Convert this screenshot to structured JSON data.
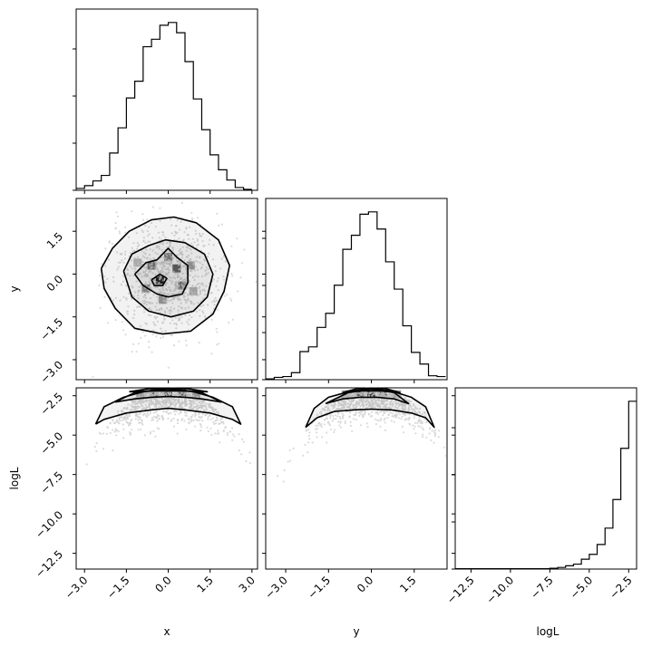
{
  "chart_data": [
    {
      "panel": "hist-x",
      "type": "histogram",
      "param": "x",
      "bins": [
        -3.3,
        -3.0,
        -2.7,
        -2.4,
        -2.1,
        -1.8,
        -1.5,
        -1.2,
        -0.9,
        -0.6,
        -0.3,
        0.0,
        0.3,
        0.6,
        0.9,
        1.2,
        1.5,
        1.8,
        2.1,
        2.4,
        2.7,
        3.0
      ],
      "counts": [
        2,
        5,
        10,
        16,
        40,
        67,
        99,
        117,
        154,
        162,
        177,
        180,
        169,
        138,
        98,
        65,
        38,
        22,
        11,
        3,
        1
      ],
      "xlim": [
        -3.3,
        3.2
      ]
    },
    {
      "panel": "hist-y",
      "type": "histogram",
      "param": "y",
      "bins": [
        -3.7,
        -3.4,
        -3.1,
        -2.8,
        -2.5,
        -2.2,
        -1.9,
        -1.6,
        -1.3,
        -1.0,
        -0.7,
        -0.4,
        -0.1,
        0.2,
        0.5,
        0.8,
        1.1,
        1.4,
        1.7,
        2.0,
        2.3,
        2.6
      ],
      "counts": [
        1,
        3,
        4,
        9,
        36,
        42,
        67,
        85,
        121,
        167,
        185,
        212,
        215,
        193,
        151,
        116,
        69,
        35,
        20,
        5,
        4
      ],
      "xlim": [
        -3.7,
        2.65
      ]
    },
    {
      "panel": "hist-logL",
      "type": "histogram",
      "param": "logL",
      "bins": [
        -13.5,
        -13.0,
        -12.5,
        -12.0,
        -11.5,
        -11.0,
        -10.5,
        -10.0,
        -9.5,
        -9.0,
        -8.5,
        -8.0,
        -7.5,
        -7.0,
        -6.5,
        -6.0,
        -5.5,
        -5.0,
        -4.5,
        -4.0,
        -3.5,
        -3.0,
        -2.5,
        -2.0
      ],
      "counts": [
        1,
        1,
        1,
        1,
        1,
        1,
        1,
        1,
        1,
        1,
        1,
        1,
        2,
        4,
        8,
        12,
        24,
        36,
        60,
        100,
        170,
        295,
        410
      ],
      "xlim": [
        -13.5,
        -2.0
      ]
    },
    {
      "panel": "x-y",
      "type": "contour",
      "xparam": "x",
      "yparam": "y",
      "xlim": [
        -3.3,
        3.2
      ],
      "ylim": [
        -3.7,
        2.65
      ],
      "levels": [
        [
          [
            -2.4,
            0.2
          ],
          [
            -2.0,
            0.9
          ],
          [
            -1.4,
            1.5
          ],
          [
            -0.6,
            1.9
          ],
          [
            0.2,
            2.0
          ],
          [
            1.0,
            1.8
          ],
          [
            1.8,
            1.2
          ],
          [
            2.2,
            0.3
          ],
          [
            2.0,
            -0.6
          ],
          [
            1.6,
            -1.4
          ],
          [
            0.8,
            -2.0
          ],
          [
            -0.2,
            -2.1
          ],
          [
            -1.2,
            -1.9
          ],
          [
            -1.9,
            -1.2
          ],
          [
            -2.3,
            -0.5
          ],
          [
            -2.4,
            0.2
          ]
        ],
        [
          [
            -1.6,
            0.1
          ],
          [
            -1.3,
            0.7
          ],
          [
            -0.7,
            1.0
          ],
          [
            -0.1,
            1.2
          ],
          [
            0.6,
            1.1
          ],
          [
            1.3,
            0.7
          ],
          [
            1.6,
            0.0
          ],
          [
            1.4,
            -0.8
          ],
          [
            0.9,
            -1.3
          ],
          [
            0.1,
            -1.5
          ],
          [
            -0.7,
            -1.3
          ],
          [
            -1.3,
            -0.8
          ],
          [
            -1.6,
            0.1
          ]
        ],
        [
          [
            -1.2,
            0.0
          ],
          [
            -0.8,
            0.4
          ],
          [
            -0.4,
            0.5
          ],
          [
            0.0,
            0.9
          ],
          [
            0.3,
            0.6
          ],
          [
            0.7,
            0.3
          ],
          [
            0.7,
            -0.3
          ],
          [
            0.5,
            -0.7
          ],
          [
            0.0,
            -0.8
          ],
          [
            -0.4,
            -0.7
          ],
          [
            -0.9,
            -0.4
          ],
          [
            -1.2,
            0.0
          ]
        ],
        [
          [
            -0.6,
            -0.2
          ],
          [
            -0.3,
            0.0
          ],
          [
            -0.05,
            -0.15
          ],
          [
            -0.2,
            -0.4
          ],
          [
            -0.5,
            -0.4
          ],
          [
            -0.6,
            -0.2
          ]
        ]
      ],
      "density_peaks": [
        [
          -0.3,
          -0.2,
          1.0
        ],
        [
          0.3,
          0.2,
          0.7
        ],
        [
          -0.6,
          0.3,
          0.6
        ],
        [
          0.5,
          -0.4,
          0.6
        ],
        [
          0.0,
          0.6,
          0.55
        ],
        [
          -0.8,
          -0.5,
          0.5
        ],
        [
          0.8,
          0.3,
          0.45
        ],
        [
          -0.2,
          -0.9,
          0.45
        ],
        [
          0.9,
          -0.6,
          0.35
        ],
        [
          -1.1,
          0.4,
          0.3
        ]
      ]
    },
    {
      "panel": "x-logL",
      "type": "contour",
      "xparam": "x",
      "yparam": "logL",
      "xlim": [
        -3.3,
        3.2
      ],
      "ylim": [
        -13.5,
        -2.0
      ],
      "levels": [
        [
          [
            -2.6,
            -4.3
          ],
          [
            -2.3,
            -4.0
          ],
          [
            -1.5,
            -3.6
          ],
          [
            -0.6,
            -3.4
          ],
          [
            0.0,
            -3.3
          ],
          [
            0.6,
            -3.4
          ],
          [
            1.5,
            -3.6
          ],
          [
            2.3,
            -4.0
          ],
          [
            2.6,
            -4.3
          ],
          [
            2.3,
            -3.2
          ],
          [
            1.6,
            -2.6
          ],
          [
            0.8,
            -2.2
          ],
          [
            0.0,
            -2.05
          ],
          [
            -0.8,
            -2.2
          ],
          [
            -1.6,
            -2.6
          ],
          [
            -2.3,
            -3.2
          ],
          [
            -2.6,
            -4.3
          ]
        ],
        [
          [
            -1.9,
            -2.9
          ],
          [
            -1.2,
            -2.7
          ],
          [
            -0.6,
            -2.6
          ],
          [
            0.0,
            -2.55
          ],
          [
            0.6,
            -2.6
          ],
          [
            1.2,
            -2.7
          ],
          [
            1.9,
            -2.9
          ],
          [
            1.2,
            -2.3
          ],
          [
            0.0,
            -2.1
          ],
          [
            -1.2,
            -2.3
          ],
          [
            -1.9,
            -2.9
          ]
        ],
        [
          [
            -1.4,
            -2.25
          ],
          [
            -0.7,
            -2.2
          ],
          [
            0.0,
            -2.2
          ],
          [
            0.7,
            -2.2
          ],
          [
            1.4,
            -2.25
          ],
          [
            0.7,
            -2.05
          ],
          [
            0.0,
            -2.02
          ],
          [
            -0.7,
            -2.05
          ],
          [
            -1.4,
            -2.25
          ]
        ]
      ],
      "density_peaks": [
        [
          0.0,
          -2.3,
          1.0
        ],
        [
          -0.5,
          -2.3,
          0.8
        ],
        [
          0.5,
          -2.3,
          0.8
        ],
        [
          -1.0,
          -2.4,
          0.4
        ],
        [
          1.0,
          -2.4,
          0.4
        ]
      ]
    },
    {
      "panel": "y-logL",
      "type": "contour",
      "xparam": "y",
      "yparam": "logL",
      "xlim": [
        -3.7,
        2.65
      ],
      "ylim": [
        -13.5,
        -2.0
      ],
      "levels": [
        [
          [
            -2.3,
            -4.5
          ],
          [
            -1.9,
            -3.9
          ],
          [
            -1.3,
            -3.5
          ],
          [
            -0.6,
            -3.4
          ],
          [
            0.0,
            -3.35
          ],
          [
            0.7,
            -3.4
          ],
          [
            1.4,
            -3.6
          ],
          [
            1.9,
            -3.9
          ],
          [
            2.2,
            -4.5
          ],
          [
            1.9,
            -3.2
          ],
          [
            1.4,
            -2.6
          ],
          [
            0.7,
            -2.2
          ],
          [
            0.0,
            -2.05
          ],
          [
            -0.7,
            -2.2
          ],
          [
            -1.5,
            -2.6
          ],
          [
            -2.0,
            -3.3
          ],
          [
            -2.3,
            -4.5
          ]
        ],
        [
          [
            -1.6,
            -3.0
          ],
          [
            -1.0,
            -2.7
          ],
          [
            -0.4,
            -2.6
          ],
          [
            0.2,
            -2.6
          ],
          [
            0.8,
            -2.7
          ],
          [
            1.3,
            -3.0
          ],
          [
            0.8,
            -2.3
          ],
          [
            0.0,
            -2.1
          ],
          [
            -0.8,
            -2.3
          ],
          [
            -1.6,
            -3.0
          ]
        ],
        [
          [
            -1.0,
            -2.3
          ],
          [
            -0.5,
            -2.2
          ],
          [
            0.0,
            -2.2
          ],
          [
            0.5,
            -2.2
          ],
          [
            1.0,
            -2.3
          ],
          [
            0.5,
            -2.05
          ],
          [
            0.0,
            -2.02
          ],
          [
            -0.5,
            -2.05
          ],
          [
            -1.0,
            -2.3
          ]
        ]
      ],
      "density_peaks": [
        [
          0.0,
          -2.3,
          1.0
        ],
        [
          -0.4,
          -2.3,
          0.8
        ],
        [
          0.4,
          -2.3,
          0.8
        ],
        [
          -0.9,
          -2.4,
          0.35
        ],
        [
          0.9,
          -2.4,
          0.35
        ]
      ]
    }
  ],
  "axes": {
    "x_ticks": [
      "−3.0",
      "−1.5",
      "0.0",
      "1.5",
      "3.0"
    ],
    "y_ticks": [
      "−3.0",
      "−1.5",
      "0.0",
      "1.5"
    ],
    "logL_ticks": [
      "−12.5",
      "−10.0",
      "−7.5",
      "−5.0",
      "−2.5"
    ],
    "labels": {
      "x": "x",
      "y": "y",
      "logL": "logL"
    }
  },
  "style": {
    "line_color": "#000000",
    "scatter_color": "#cfcfcf",
    "density_color": "#000000"
  }
}
